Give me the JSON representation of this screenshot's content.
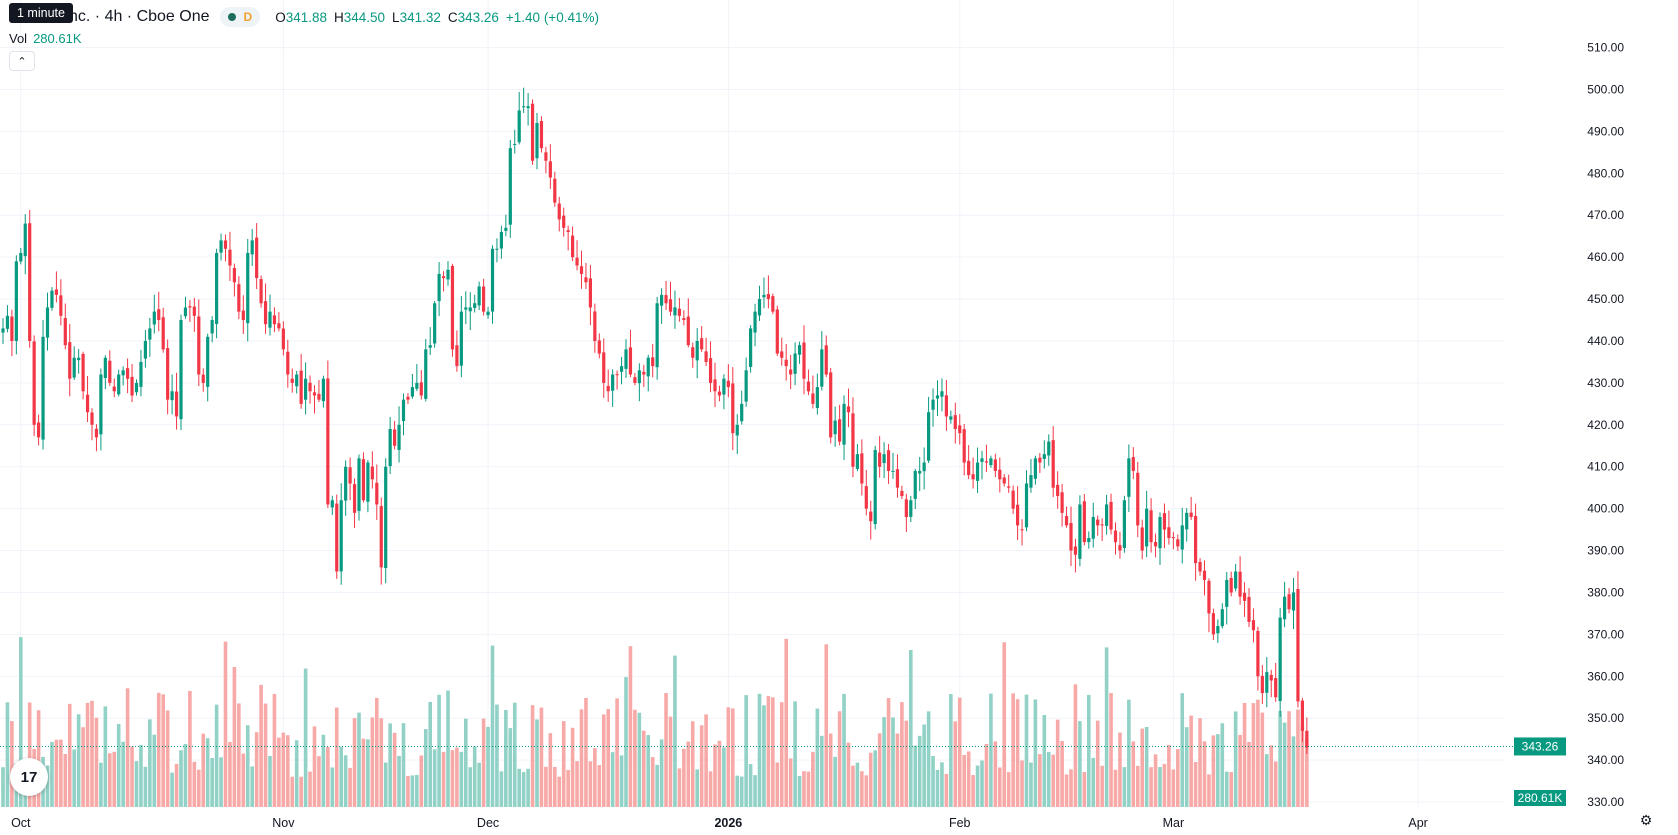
{
  "tooltip": "1 minute",
  "header": {
    "symbol_title": "nc. · 4h · Cboe One",
    "badge": "D",
    "o_label": "O",
    "o": "341.88",
    "h_label": "H",
    "h": "344.50",
    "l_label": "L",
    "l": "341.32",
    "c_label": "C",
    "c": "343.26",
    "change": "+1.40 (+0.41%)"
  },
  "volume_legend": {
    "label": "Vol",
    "value": "280.61K"
  },
  "collapse_icon": "chevron-up-icon",
  "settings_icon": "gear-icon",
  "logo_text": "17",
  "chart_data": {
    "type": "candlestick",
    "price_axis": {
      "ylim": [
        325,
        513
      ],
      "ticks": [
        "510.00",
        "500.00",
        "490.00",
        "480.00",
        "470.00",
        "460.00",
        "450.00",
        "440.00",
        "430.00",
        "420.00",
        "410.00",
        "400.00",
        "390.00",
        "380.00",
        "370.00",
        "360.00",
        "350.00",
        "340.00",
        "330.00"
      ]
    },
    "time_axis": {
      "labels": [
        {
          "text": "Oct",
          "bold": false,
          "bar_index": 4
        },
        {
          "text": "Nov",
          "bold": false,
          "bar_index": 63
        },
        {
          "text": "Dec",
          "bold": false,
          "bar_index": 109
        },
        {
          "text": "2026",
          "bold": true,
          "bar_index": 163
        },
        {
          "text": "Feb",
          "bold": false,
          "bar_index": 215
        },
        {
          "text": "Mar",
          "bold": false,
          "bar_index": 263
        },
        {
          "text": "Apr",
          "bold": false,
          "bar_index": 318
        }
      ]
    },
    "last_price": {
      "value": 343.26,
      "label": "343.26"
    },
    "last_volume_label": "280.61K",
    "colors": {
      "up": "#089981",
      "down": "#f23645",
      "up_vol": "#91d1c6",
      "down_vol": "#f7a9a7",
      "grid": "#f0f3fa"
    },
    "close": [
      443,
      446,
      440,
      459,
      461,
      468,
      440,
      420,
      417,
      441,
      448,
      452,
      451,
      446,
      439,
      431,
      436,
      436,
      428,
      423,
      420,
      417,
      432,
      436,
      430,
      428,
      432,
      433,
      431,
      427,
      430,
      435,
      440,
      443,
      447,
      445,
      438,
      426,
      428,
      422,
      445,
      448,
      448,
      446,
      432,
      430,
      441,
      445,
      461,
      464,
      462,
      458,
      454,
      447,
      445,
      461,
      464,
      455,
      449,
      444,
      447,
      444,
      443,
      438,
      432,
      430,
      432,
      425,
      431,
      428,
      427,
      426,
      431,
      401,
      402,
      385,
      402,
      410,
      406,
      399,
      412,
      402,
      411,
      407,
      401,
      386,
      410,
      419,
      415,
      420,
      426,
      426,
      429,
      430,
      427,
      438,
      439,
      449,
      456,
      455,
      457,
      438,
      434,
      447,
      448,
      448,
      449,
      453,
      447,
      447,
      462,
      462,
      466,
      467,
      486,
      487,
      495,
      496,
      496,
      483,
      492,
      486,
      483,
      479,
      473,
      469,
      467,
      466,
      460,
      458,
      456,
      454,
      448,
      440,
      437,
      430,
      428,
      432,
      432,
      434,
      438,
      432,
      430,
      433,
      432,
      436,
      434,
      449,
      451,
      449,
      447,
      448,
      446,
      445,
      439,
      436,
      440,
      438,
      435,
      430,
      428,
      427,
      431,
      429,
      418,
      420,
      425,
      433,
      443,
      447,
      450,
      451,
      450,
      447,
      437,
      436,
      434,
      432,
      437,
      439,
      431,
      428,
      425,
      429,
      438,
      432,
      417,
      421,
      416,
      425,
      423,
      410,
      413,
      406,
      400,
      397,
      414,
      410,
      413,
      409,
      409,
      405,
      403,
      398,
      402,
      409,
      409,
      411,
      423,
      426,
      427,
      428,
      422,
      422,
      419,
      418,
      411,
      408,
      407,
      411,
      412,
      411,
      412,
      409,
      407,
      406,
      405,
      400,
      396,
      395,
      406,
      408,
      412,
      411,
      413,
      416,
      405,
      403,
      399,
      396,
      390,
      389,
      401,
      392,
      393,
      398,
      396,
      396,
      401,
      395,
      392,
      390,
      402,
      412,
      409,
      396,
      390,
      400,
      392,
      391,
      398,
      395,
      393,
      393,
      391,
      396,
      399,
      398,
      387,
      385,
      383,
      375,
      370,
      372,
      376,
      383,
      380,
      385,
      379,
      378,
      373,
      371,
      360,
      356,
      361,
      359,
      355,
      374,
      379,
      376,
      380,
      354,
      347,
      343
    ]
  }
}
